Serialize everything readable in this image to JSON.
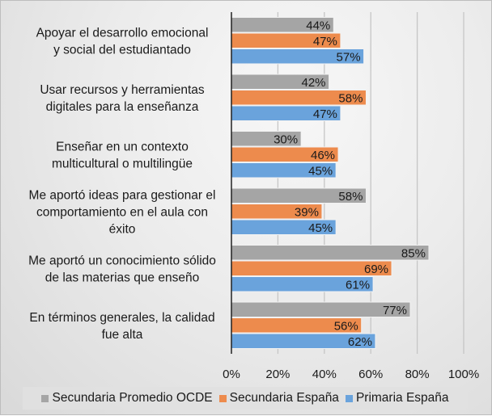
{
  "chart_data": {
    "type": "bar",
    "orientation": "horizontal",
    "title": "",
    "xlabel": "",
    "ylabel": "",
    "xlim": [
      0,
      100
    ],
    "x_ticks": [
      "0%",
      "20%",
      "40%",
      "60%",
      "80%",
      "100%"
    ],
    "grid": "vertical",
    "legend_position": "bottom",
    "categories": [
      [
        "Apoyar el desarrollo emocional",
        "y social del estudiantado"
      ],
      [
        "Usar recursos y herramientas",
        "digitales para la enseñanza"
      ],
      [
        "Enseñar en un contexto",
        "multicultural o multilingüe"
      ],
      [
        "Me aportó ideas para gestionar el",
        "comportamiento en el aula con",
        "éxito"
      ],
      [
        "Me aportó un conocimiento sólido",
        "de las materias que enseño"
      ],
      [
        "En términos generales, la calidad",
        "fue alta"
      ]
    ],
    "series": [
      {
        "name": "Secundaria Promedio OCDE",
        "color": "#a5a5a5",
        "values": [
          44,
          42,
          30,
          58,
          85,
          77
        ]
      },
      {
        "name": "Secundaria España",
        "color": "#ed8b4d",
        "values": [
          47,
          58,
          46,
          39,
          69,
          56
        ]
      },
      {
        "name": "Primaria España",
        "color": "#6aa3dc",
        "values": [
          57,
          47,
          45,
          45,
          61,
          62
        ]
      }
    ],
    "value_suffix": "%"
  }
}
